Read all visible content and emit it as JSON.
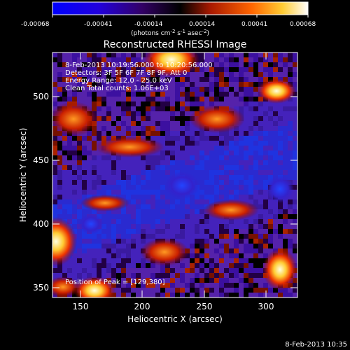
{
  "colorbar": {
    "ticks": [
      "-0.00068",
      "-0.00041",
      "-0.00014",
      "0.00014",
      "0.00041",
      "0.00068"
    ],
    "units_base": "(photons cm",
    "units_exp1": "-2",
    "units_mid1": " s",
    "units_exp2": "-1",
    "units_mid2": " asec",
    "units_exp3": "-2",
    "units_end": ")",
    "colors": [
      "#0000ff",
      "#3300aa",
      "#000000",
      "#aa1a00",
      "#ff8800",
      "#ffffff"
    ]
  },
  "title": "Reconstructed RHESSI Image",
  "info": {
    "time_range": "8-Feb-2013 10:19:56.000 to 10:20:56.000",
    "detectors": "Detectors: 3F 5F 6F 7F 8F 9F, Att 0",
    "energy": "Energy Range: 12.0 - 25.0 keV",
    "clean": "Clean     Total counts: 1.06E+03",
    "peak": "Position of Peak = [129,380]"
  },
  "axes": {
    "xlabel": "Heliocentric X (arcsec)",
    "ylabel": "Heliocentric Y (arcsec)",
    "xticks": [
      "150",
      "200",
      "250",
      "300"
    ],
    "yticks": [
      "350",
      "400",
      "450",
      "500"
    ]
  },
  "timestamp": "8-Feb-2013 10:35"
}
